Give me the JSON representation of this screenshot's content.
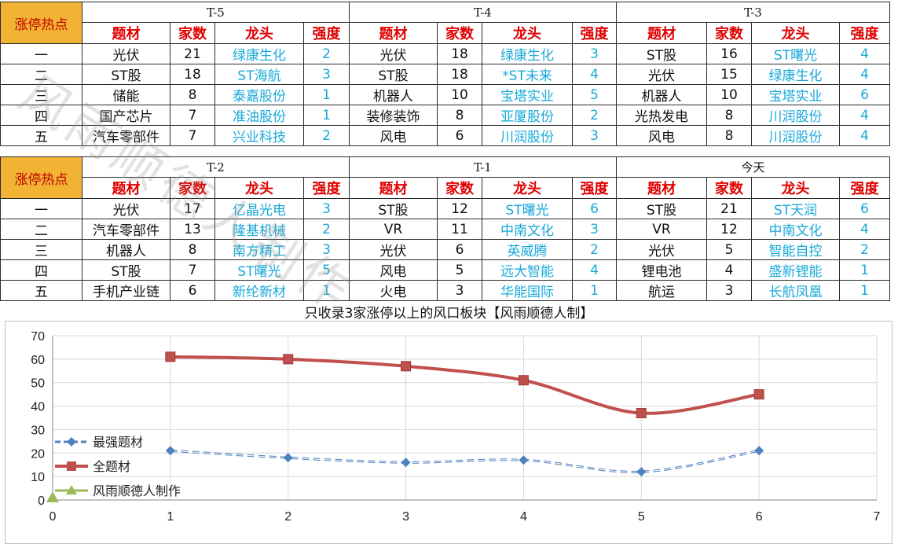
{
  "hot_label": "涨停热点",
  "headers": {
    "topic": "题材",
    "count": "家数",
    "leader": "龙头",
    "strength": "强度"
  },
  "ranks": [
    "一",
    "二",
    "三",
    "四",
    "五"
  ],
  "periods_top": [
    {
      "label": "T-5",
      "rows": [
        {
          "topic": "光伏",
          "count": "21",
          "leader": "绿康生化",
          "strength": "2"
        },
        {
          "topic": "ST股",
          "count": "18",
          "leader": "ST海航",
          "strength": "3"
        },
        {
          "topic": "储能",
          "count": "8",
          "leader": "泰嘉股份",
          "strength": "1"
        },
        {
          "topic": "国产芯片",
          "count": "7",
          "leader": "准油股份",
          "strength": "1"
        },
        {
          "topic": "汽车零部件",
          "count": "7",
          "leader": "兴业科技",
          "strength": "2"
        }
      ]
    },
    {
      "label": "T-4",
      "rows": [
        {
          "topic": "光伏",
          "count": "18",
          "leader": "绿康生化",
          "strength": "3"
        },
        {
          "topic": "ST股",
          "count": "18",
          "leader": "*ST未来",
          "strength": "4"
        },
        {
          "topic": "机器人",
          "count": "10",
          "leader": "宝塔实业",
          "strength": "5"
        },
        {
          "topic": "装修装饰",
          "count": "8",
          "leader": "亚厦股份",
          "strength": "2"
        },
        {
          "topic": "风电",
          "count": "6",
          "leader": "川润股份",
          "strength": "3"
        }
      ]
    },
    {
      "label": "T-3",
      "rows": [
        {
          "topic": "ST股",
          "count": "16",
          "leader": "ST曙光",
          "strength": "4"
        },
        {
          "topic": "光伏",
          "count": "15",
          "leader": "绿康生化",
          "strength": "4"
        },
        {
          "topic": "机器人",
          "count": "10",
          "leader": "宝塔实业",
          "strength": "6"
        },
        {
          "topic": "光热发电",
          "count": "8",
          "leader": "川润股份",
          "strength": "4"
        },
        {
          "topic": "风电",
          "count": "8",
          "leader": "川润股份",
          "strength": "4"
        }
      ]
    }
  ],
  "periods_bottom": [
    {
      "label": "T-2",
      "rows": [
        {
          "topic": "光伏",
          "count": "17",
          "leader": "亿晶光电",
          "strength": "3"
        },
        {
          "topic": "汽车零部件",
          "count": "13",
          "leader": "隆基机械",
          "strength": "2"
        },
        {
          "topic": "机器人",
          "count": "8",
          "leader": "南方精工",
          "strength": "3"
        },
        {
          "topic": "ST股",
          "count": "7",
          "leader": "ST曙光",
          "strength": "5"
        },
        {
          "topic": "手机产业链",
          "count": "6",
          "leader": "新纶新材",
          "strength": "1"
        }
      ]
    },
    {
      "label": "T-1",
      "rows": [
        {
          "topic": "ST股",
          "count": "12",
          "leader": "ST曙光",
          "strength": "6"
        },
        {
          "topic": "VR",
          "count": "11",
          "leader": "中南文化",
          "strength": "3"
        },
        {
          "topic": "光伏",
          "count": "6",
          "leader": "英威腾",
          "strength": "2"
        },
        {
          "topic": "风电",
          "count": "5",
          "leader": "远大智能",
          "strength": "4"
        },
        {
          "topic": "火电",
          "count": "3",
          "leader": "华能国际",
          "strength": "1"
        }
      ]
    },
    {
      "label": "今天",
      "rows": [
        {
          "topic": "ST股",
          "count": "21",
          "leader": "ST天润",
          "strength": "6"
        },
        {
          "topic": "VR",
          "count": "12",
          "leader": "中南文化",
          "strength": "4"
        },
        {
          "topic": "光伏",
          "count": "5",
          "leader": "智能自控",
          "strength": "2"
        },
        {
          "topic": "锂电池",
          "count": "4",
          "leader": "盛新锂能",
          "strength": "1"
        },
        {
          "topic": "航运",
          "count": "3",
          "leader": "长航凤凰",
          "strength": "1"
        }
      ]
    }
  ],
  "watermark": "风雨顺德人制作",
  "colors": {
    "hot_bg": "#f2b233",
    "header_red": "#e00000",
    "leader_blue": "#18a8d8",
    "series_all": "#c0504d",
    "series_best": "#4f81bd",
    "series_author": "#9bbb59"
  },
  "chart_data": {
    "type": "line",
    "title": "只收录3家涨停以上的风口板块【风雨顺德人制】",
    "xlim": [
      0,
      7
    ],
    "ylim": [
      0,
      70
    ],
    "xticks": [
      0,
      1,
      2,
      3,
      4,
      5,
      6,
      7
    ],
    "yticks": [
      0,
      10,
      20,
      30,
      40,
      50,
      60,
      70
    ],
    "legend_position": "left",
    "series": [
      {
        "name": "最强题材",
        "style": "dashed-diamond",
        "x": [
          1,
          2,
          3,
          4,
          5,
          6
        ],
        "y": [
          21,
          18,
          16,
          17,
          12,
          21
        ]
      },
      {
        "name": "全题材",
        "style": "solid-square",
        "x": [
          1,
          2,
          3,
          4,
          5,
          6
        ],
        "y": [
          61,
          60,
          57,
          51,
          37,
          45
        ]
      },
      {
        "name": "风雨顺德人制作",
        "style": "triangle",
        "x": [
          0
        ],
        "y": [
          1
        ]
      }
    ]
  }
}
